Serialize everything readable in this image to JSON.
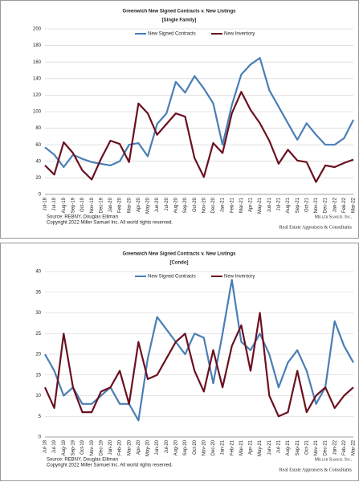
{
  "chart_data": [
    {
      "type": "line",
      "title": "Greenwich New Signed Contracts v. New Listings",
      "subtitle": "[Single Family]",
      "categories": [
        "Jul-18",
        "Jul-19",
        "Aug-19",
        "Sep-19",
        "Oct-19",
        "Nov-19",
        "Dec-19",
        "Jan-20",
        "Feb-20",
        "Mar-20",
        "Apr-20",
        "May-20",
        "Jun-20",
        "Jul-20",
        "Aug-20",
        "Sep-20",
        "Oct-20",
        "Nov-20",
        "Dec-20",
        "Jan-21",
        "Feb-21",
        "Mar-21",
        "Apr-21",
        "May-21",
        "Jun-21",
        "Jul-21",
        "Aug-21",
        "Sep-21",
        "Oct-21",
        "Nov-21",
        "Dec-21",
        "Jan-22",
        "Feb-22",
        "Mar-22"
      ],
      "series": [
        {
          "name": "New Signed Contracts",
          "color": "#4a7fb5",
          "values": [
            57,
            48,
            33,
            48,
            43,
            39,
            37,
            35,
            40,
            60,
            62,
            46,
            85,
            98,
            136,
            123,
            143,
            128,
            110,
            60,
            108,
            145,
            157,
            165,
            126,
            106,
            86,
            66,
            86,
            72,
            60,
            60,
            68,
            90
          ]
        },
        {
          "name": "New Inventory",
          "color": "#6b1020",
          "values": [
            35,
            24,
            63,
            50,
            29,
            18,
            43,
            65,
            61,
            39,
            110,
            98,
            72,
            85,
            98,
            94,
            44,
            21,
            62,
            50,
            98,
            124,
            102,
            86,
            65,
            37,
            54,
            41,
            39,
            15,
            35,
            33,
            38,
            42
          ]
        }
      ],
      "ylim": [
        0,
        200
      ],
      "yticks": [
        0,
        20,
        40,
        60,
        80,
        100,
        120,
        140,
        160,
        180,
        200
      ],
      "grid": true,
      "source": "Source: REBNY, Douglas Elliman",
      "copyright": "Copyright 2022 Miller Samuel Inc. All world rights reserved.",
      "logo_name": "Miller Samuel Inc.",
      "logo_tagline": "Real Estate Appraisers & Consultants"
    },
    {
      "type": "line",
      "title": "Greenwich New Signed Contracts v. New Listings",
      "subtitle": "[Condo]",
      "categories": [
        "Jul-18",
        "Jul-19",
        "Aug-19",
        "Sep-19",
        "Oct-19",
        "Nov-19",
        "Dec-19",
        "Jan-20",
        "Feb-20",
        "Mar-20",
        "Apr-20",
        "May-20",
        "Jun-20",
        "Jul-20",
        "Aug-20",
        "Sep-20",
        "Oct-20",
        "Nov-20",
        "Dec-20",
        "Jan-21",
        "Feb-21",
        "Mar-21",
        "Apr-21",
        "May-21",
        "Jun-21",
        "Jul-21",
        "Aug-21",
        "Sep-21",
        "Oct-21",
        "Nov-21",
        "Dec-21",
        "Jan-22",
        "Feb-22",
        "Mar-22"
      ],
      "series": [
        {
          "name": "New Signed Contracts",
          "color": "#4a7fb5",
          "values": [
            20,
            16,
            10,
            12,
            8,
            8,
            10,
            12,
            8,
            8,
            4,
            19,
            29,
            26,
            23,
            20,
            25,
            24,
            13,
            25,
            38,
            23,
            21,
            25,
            20,
            12,
            18,
            21,
            16,
            8,
            12,
            28,
            22,
            18
          ]
        },
        {
          "name": "New Inventory",
          "color": "#6b1020",
          "values": [
            12,
            7,
            25,
            12,
            6,
            6,
            11,
            12,
            16,
            8,
            23,
            14,
            15,
            19,
            23,
            25,
            16,
            11,
            21,
            12,
            22,
            27,
            16,
            30,
            10,
            5,
            6,
            16,
            6,
            10,
            12,
            7,
            10,
            12
          ]
        }
      ],
      "ylim": [
        0,
        40
      ],
      "yticks": [
        0,
        5,
        10,
        15,
        20,
        25,
        30,
        35,
        40
      ],
      "grid": true,
      "source": "Source: REBNY, Douglas Elliman",
      "copyright": "Copyright 2022 Miller Samuel Inc. All world rights reserved.",
      "logo_name": "Miller Samuel Inc.",
      "logo_tagline": "Real Estate Appraisers & Consultants"
    }
  ]
}
